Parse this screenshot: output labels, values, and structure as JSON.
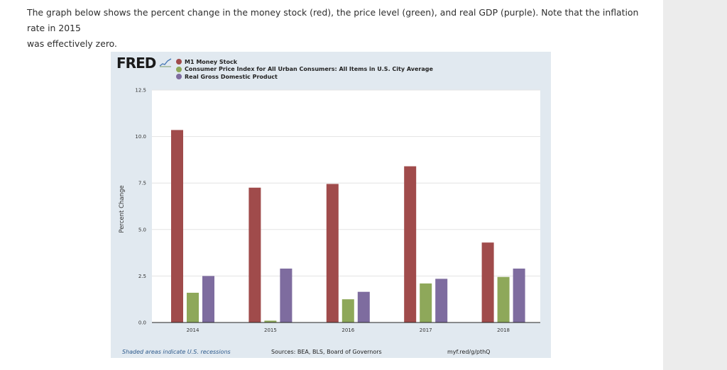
{
  "intro": {
    "line1": "The graph below shows the percent change in the money stock (red), the price level (green), and real GDP (purple). Note that the inflation rate in 2015",
    "line2": "was effectively zero."
  },
  "fred": {
    "logo_text": "FRED",
    "footer_note": "Shaded areas indicate U.S. recessions",
    "footer_sources": "Sources: BEA, BLS, Board of Governors",
    "footer_link": "myf.red/g/pthQ"
  },
  "chart_data": {
    "type": "bar",
    "title": "",
    "xlabel": "",
    "ylabel": "Percent Change",
    "categories": [
      "2014",
      "2015",
      "2016",
      "2017",
      "2018"
    ],
    "ylim": [
      0,
      12.5
    ],
    "yticks": [
      "0.0",
      "2.5",
      "5.0",
      "7.5",
      "10.0",
      "12.5"
    ],
    "grid": true,
    "series": [
      {
        "name": "M1 Money Stock",
        "color": "#a04b4b",
        "values": [
          10.35,
          7.25,
          7.45,
          8.4,
          4.3
        ]
      },
      {
        "name": "Consumer Price Index for All Urban Consumers: All Items in U.S. City Average",
        "color": "#8ea85a",
        "values": [
          1.6,
          0.1,
          1.25,
          2.1,
          2.45
        ]
      },
      {
        "name": "Real Gross Domestic Product",
        "color": "#7e6c9f",
        "values": [
          2.5,
          2.9,
          1.65,
          2.35,
          2.9
        ]
      }
    ]
  }
}
